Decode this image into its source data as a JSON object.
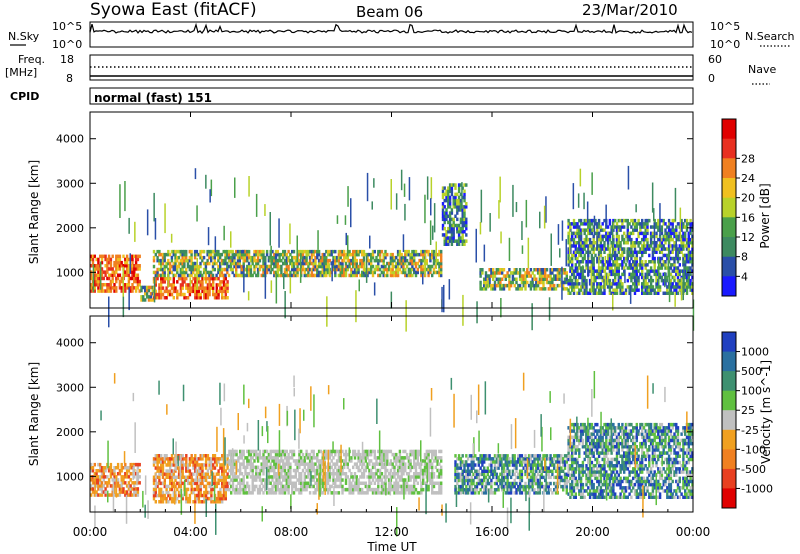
{
  "header": {
    "station": "Syowa East (fitACF)",
    "beam": "Beam 06",
    "date": "23/Mar/2010"
  },
  "summary": {
    "nsky_label": "N.Sky",
    "nsky_ticks": [
      "10^5",
      "10^0"
    ],
    "nsearch_label": "N.Search",
    "nsearch_ticks": [
      "10^5",
      "10^0"
    ],
    "freq_label": "Freq.",
    "freq_unit": "[MHz]",
    "freq_ticks": [
      "18",
      "8"
    ],
    "nave_label": "Nave",
    "nave_ticks": [
      "60",
      "0"
    ],
    "cpid_label": "CPID",
    "cpid_value": "normal (fast) 151"
  },
  "chart_data": [
    {
      "type": "heatmap",
      "name": "power",
      "ylabel": "Slant Range [km]",
      "yticks": [
        "1000",
        "2000",
        "3000",
        "4000"
      ],
      "ylim": [
        200,
        4600
      ],
      "xlim": [
        "00:00",
        "24:00"
      ],
      "colorbar_label": "Power [dB]",
      "colorbar_ticks": [
        "4",
        "8",
        "12",
        "16",
        "20",
        "24",
        "28"
      ],
      "colorbar_colors": [
        "#1a1aff",
        "#2a4fa8",
        "#3d8a60",
        "#4aa04a",
        "#b8d22a",
        "#f0c020",
        "#f08020",
        "#e83020",
        "#e00000"
      ],
      "features": [
        {
          "t0": 0.0,
          "t1": 2.0,
          "r0": 550,
          "r1": 1400,
          "level": "high"
        },
        {
          "t0": 2.0,
          "t1": 2.6,
          "r0": 350,
          "r1": 700,
          "level": "med"
        },
        {
          "t0": 2.5,
          "t1": 5.5,
          "r0": 400,
          "r1": 900,
          "level": "high"
        },
        {
          "t0": 2.5,
          "t1": 6.2,
          "r0": 900,
          "r1": 1500,
          "level": "med"
        },
        {
          "t0": 6.0,
          "t1": 14.0,
          "r0": 900,
          "r1": 1500,
          "level": "med"
        },
        {
          "t0": 14.0,
          "t1": 15.0,
          "r0": 1600,
          "r1": 3000,
          "level": "low"
        },
        {
          "t0": 15.5,
          "t1": 19.0,
          "r0": 600,
          "r1": 1100,
          "level": "med"
        },
        {
          "t0": 19.0,
          "t1": 24.0,
          "r0": 500,
          "r1": 2200,
          "level": "low"
        }
      ]
    },
    {
      "type": "heatmap",
      "name": "velocity",
      "ylabel": "Slant Range [km]",
      "yticks": [
        "1000",
        "2000",
        "3000",
        "4000"
      ],
      "ylim": [
        200,
        4600
      ],
      "xlim": [
        "00:00",
        "24:00"
      ],
      "colorbar_label": "Velocity [m s^-1]",
      "colorbar_ticks": [
        "1000",
        "500",
        "100",
        "25",
        "-25",
        "-100",
        "-500",
        "-1000"
      ],
      "colorbar_colors": [
        "#2040c0",
        "#2a70a0",
        "#3e9070",
        "#60c040",
        "#c0c0c0",
        "#f0a020",
        "#f08020",
        "#e84020",
        "#e00000"
      ],
      "features": [
        {
          "t0": 0.0,
          "t1": 2.0,
          "r0": 550,
          "r1": 1300,
          "level": "neg"
        },
        {
          "t0": 2.5,
          "t1": 5.5,
          "r0": 400,
          "r1": 1500,
          "level": "neg"
        },
        {
          "t0": 5.5,
          "t1": 14.0,
          "r0": 600,
          "r1": 1600,
          "level": "zero"
        },
        {
          "t0": 14.5,
          "t1": 19.0,
          "r0": 600,
          "r1": 1500,
          "level": "pos"
        },
        {
          "t0": 19.0,
          "t1": 24.0,
          "r0": 500,
          "r1": 2200,
          "level": "pos"
        }
      ]
    }
  ],
  "xaxis": {
    "ticks": [
      "00:00",
      "04:00",
      "08:00",
      "12:00",
      "16:00",
      "20:00",
      "00:00"
    ],
    "label": "Time UT"
  }
}
